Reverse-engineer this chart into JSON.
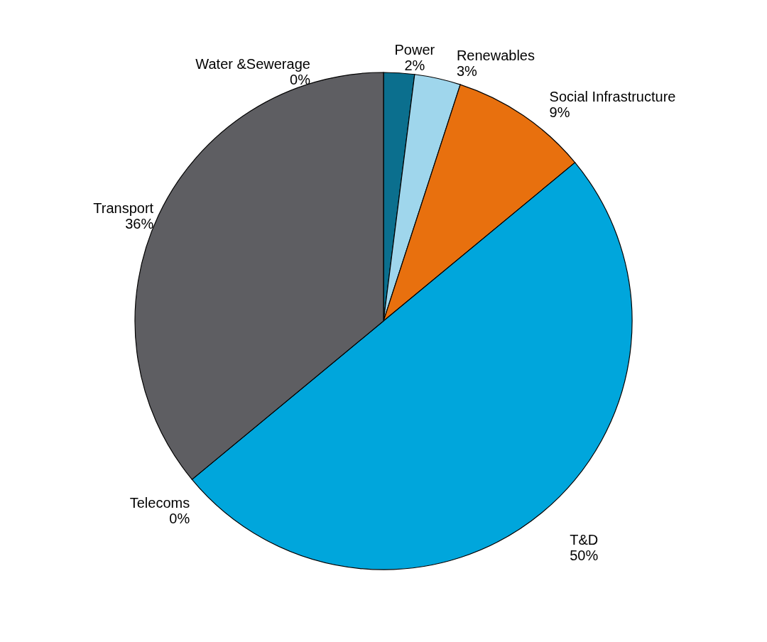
{
  "chart_data": {
    "type": "pie",
    "categories": [
      "Power",
      "Renewables",
      "Social Infrastructure",
      "T&D",
      "Telecoms",
      "Transport",
      "Water &Sewerage"
    ],
    "values": [
      2,
      3,
      9,
      50,
      0,
      36,
      0
    ],
    "value_labels": [
      "2%",
      "3%",
      "9%",
      "50%",
      "0%",
      "36%",
      "0%"
    ],
    "colors": [
      "#0b6f8e",
      "#9fd6ec",
      "#e8700e",
      "#00a6dc",
      "#7f7f7f",
      "#5e5e62",
      "#9fd6ec"
    ]
  }
}
